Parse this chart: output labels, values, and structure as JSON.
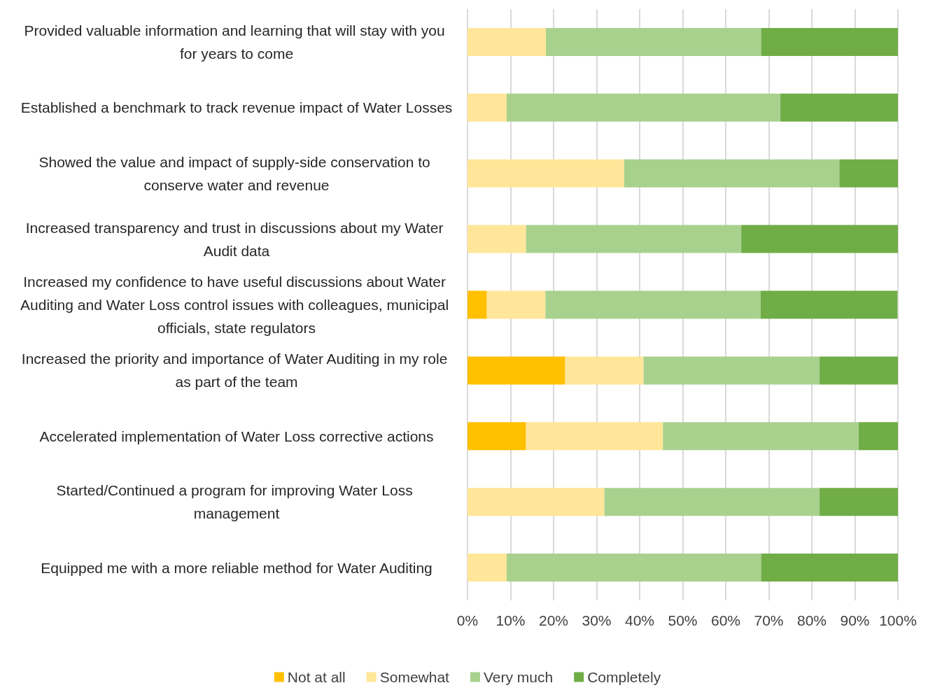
{
  "chart_data": {
    "type": "bar",
    "orientation": "horizontal",
    "stacked": true,
    "categories": [
      "Provided valuable information and learning that will stay with you for years to come",
      "Established a benchmark to track revenue impact of Water Losses",
      "Showed the value and impact of supply-side conservation to conserve water and revenue",
      "Increased transparency and trust in discussions about my Water Audit data",
      "Increased my confidence to have useful discussions about Water Auditing and Water Loss control issues with colleagues, municipal officials, state regulators",
      "Increased the priority and importance of Water Auditing in my role as part of the team",
      "Accelerated implementation of Water Loss corrective actions",
      "Started/Continued a program for improving Water Loss management",
      "Equipped me with a more reliable method for Water Auditing"
    ],
    "series": [
      {
        "name": "Not at all",
        "color": "#ffc000",
        "values": [
          0,
          0,
          0,
          0,
          4.5,
          22.7,
          13.6,
          0,
          0
        ]
      },
      {
        "name": "Somewhat",
        "color": "#ffe699",
        "values": [
          18.2,
          9.1,
          36.4,
          13.6,
          13.6,
          18.2,
          31.8,
          31.8,
          9.1
        ]
      },
      {
        "name": "Very much",
        "color": "#a9d18e",
        "values": [
          50.0,
          63.6,
          50.0,
          50.0,
          50.0,
          40.9,
          45.5,
          50.0,
          59.1
        ]
      },
      {
        "name": "Completely",
        "color": "#70ad47",
        "values": [
          31.8,
          27.3,
          13.6,
          36.4,
          31.8,
          18.2,
          9.1,
          18.2,
          31.8
        ]
      }
    ],
    "xlim": [
      0,
      100
    ],
    "xticks": [
      {
        "value": 0,
        "label": "0%"
      },
      {
        "value": 10,
        "label": "10%"
      },
      {
        "value": 20,
        "label": "20%"
      },
      {
        "value": 30,
        "label": "30%"
      },
      {
        "value": 40,
        "label": "40%"
      },
      {
        "value": 50,
        "label": "50%"
      },
      {
        "value": 60,
        "label": "60%"
      },
      {
        "value": 70,
        "label": "70%"
      },
      {
        "value": 80,
        "label": "80%"
      },
      {
        "value": 90,
        "label": "90%"
      },
      {
        "value": 100,
        "label": "100%"
      }
    ],
    "grid": "x",
    "legend": "bottom"
  }
}
